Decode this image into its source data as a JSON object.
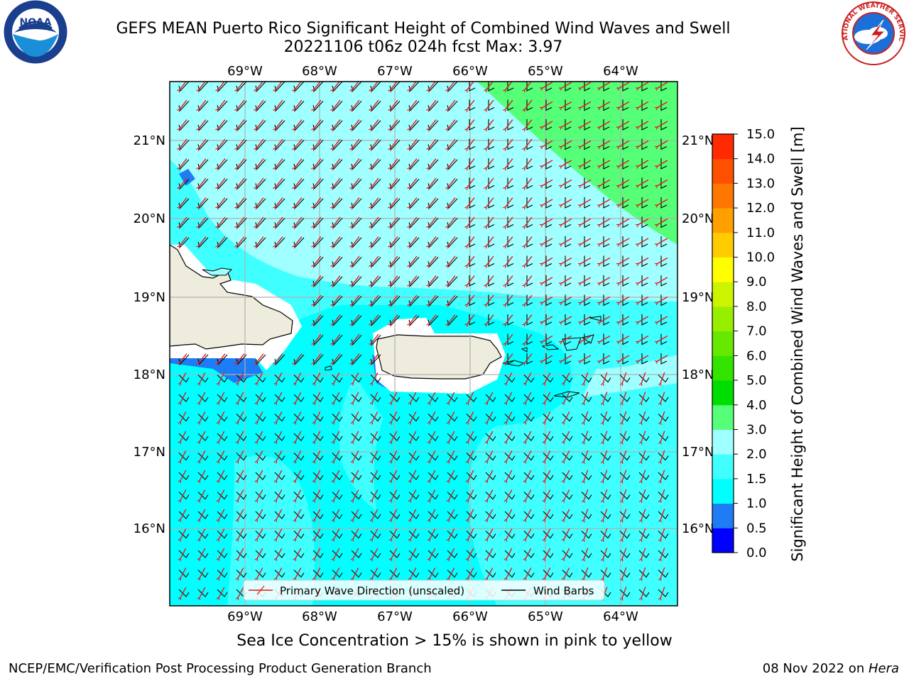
{
  "header": {
    "title_line1": "GEFS MEAN Puerto Rico Significant Height of Combined Wind Waves and Swell",
    "title_line2": "20221106 t06z 024h fcst   Max: 3.97"
  },
  "logos": {
    "noaa_text": "NOAA",
    "noaa_ring_text": "NATIONAL OCEANIC AND ATMOSPHERIC ADMINISTRATION · U.S. DEPARTMENT OF COMMERCE",
    "nws_ring_text": "NATIONAL WEATHER SERVICE"
  },
  "map": {
    "lon_labels": [
      "69°W",
      "68°W",
      "67°W",
      "66°W",
      "65°W",
      "64°W"
    ],
    "lat_labels": [
      "21°N",
      "20°N",
      "19°N",
      "18°N",
      "17°N",
      "16°N"
    ],
    "legend": {
      "wave_label": "Primary Wave Direction (unscaled)",
      "barb_label": "Wind Barbs"
    },
    "colors": {
      "land": "#eeecdc",
      "sea_1_0_1_5": "#00ffff",
      "sea_1_5_2_0": "#40ffff",
      "sea_2_0_3_0": "#a0ffff",
      "sea_3_0_4_0": "#55ff77",
      "sea_0_5_1_0": "#1e7cf5",
      "wave_arrow": "#e8181c",
      "wind_barb": "#000000"
    }
  },
  "colorbar": {
    "title": "Significant Height of Combined Wind Waves and Swell [m]",
    "ticks": [
      "15.0",
      "14.0",
      "13.0",
      "12.0",
      "11.0",
      "10.0",
      "9.0",
      "8.0",
      "7.0",
      "6.0",
      "5.0",
      "4.0",
      "3.0",
      "2.0",
      "1.5",
      "1.0",
      "0.5",
      "0.0"
    ],
    "colors": [
      "#0000ff",
      "#1e7cf5",
      "#00ffff",
      "#40ffff",
      "#a0ffff",
      "#55ff77",
      "#00dd00",
      "#33e400",
      "#66e800",
      "#99ee00",
      "#ccf400",
      "#ffff00",
      "#ffcc00",
      "#ffa000",
      "#ff7700",
      "#ff5000",
      "#ff2a00"
    ]
  },
  "footer": {
    "caption": "Sea Ice Concentration > 15% is shown in pink to yellow",
    "left": "NCEP/EMC/Verification Post Processing Product Generation Branch",
    "right_prefix": "08 Nov 2022 on ",
    "right_host": "Hera"
  }
}
